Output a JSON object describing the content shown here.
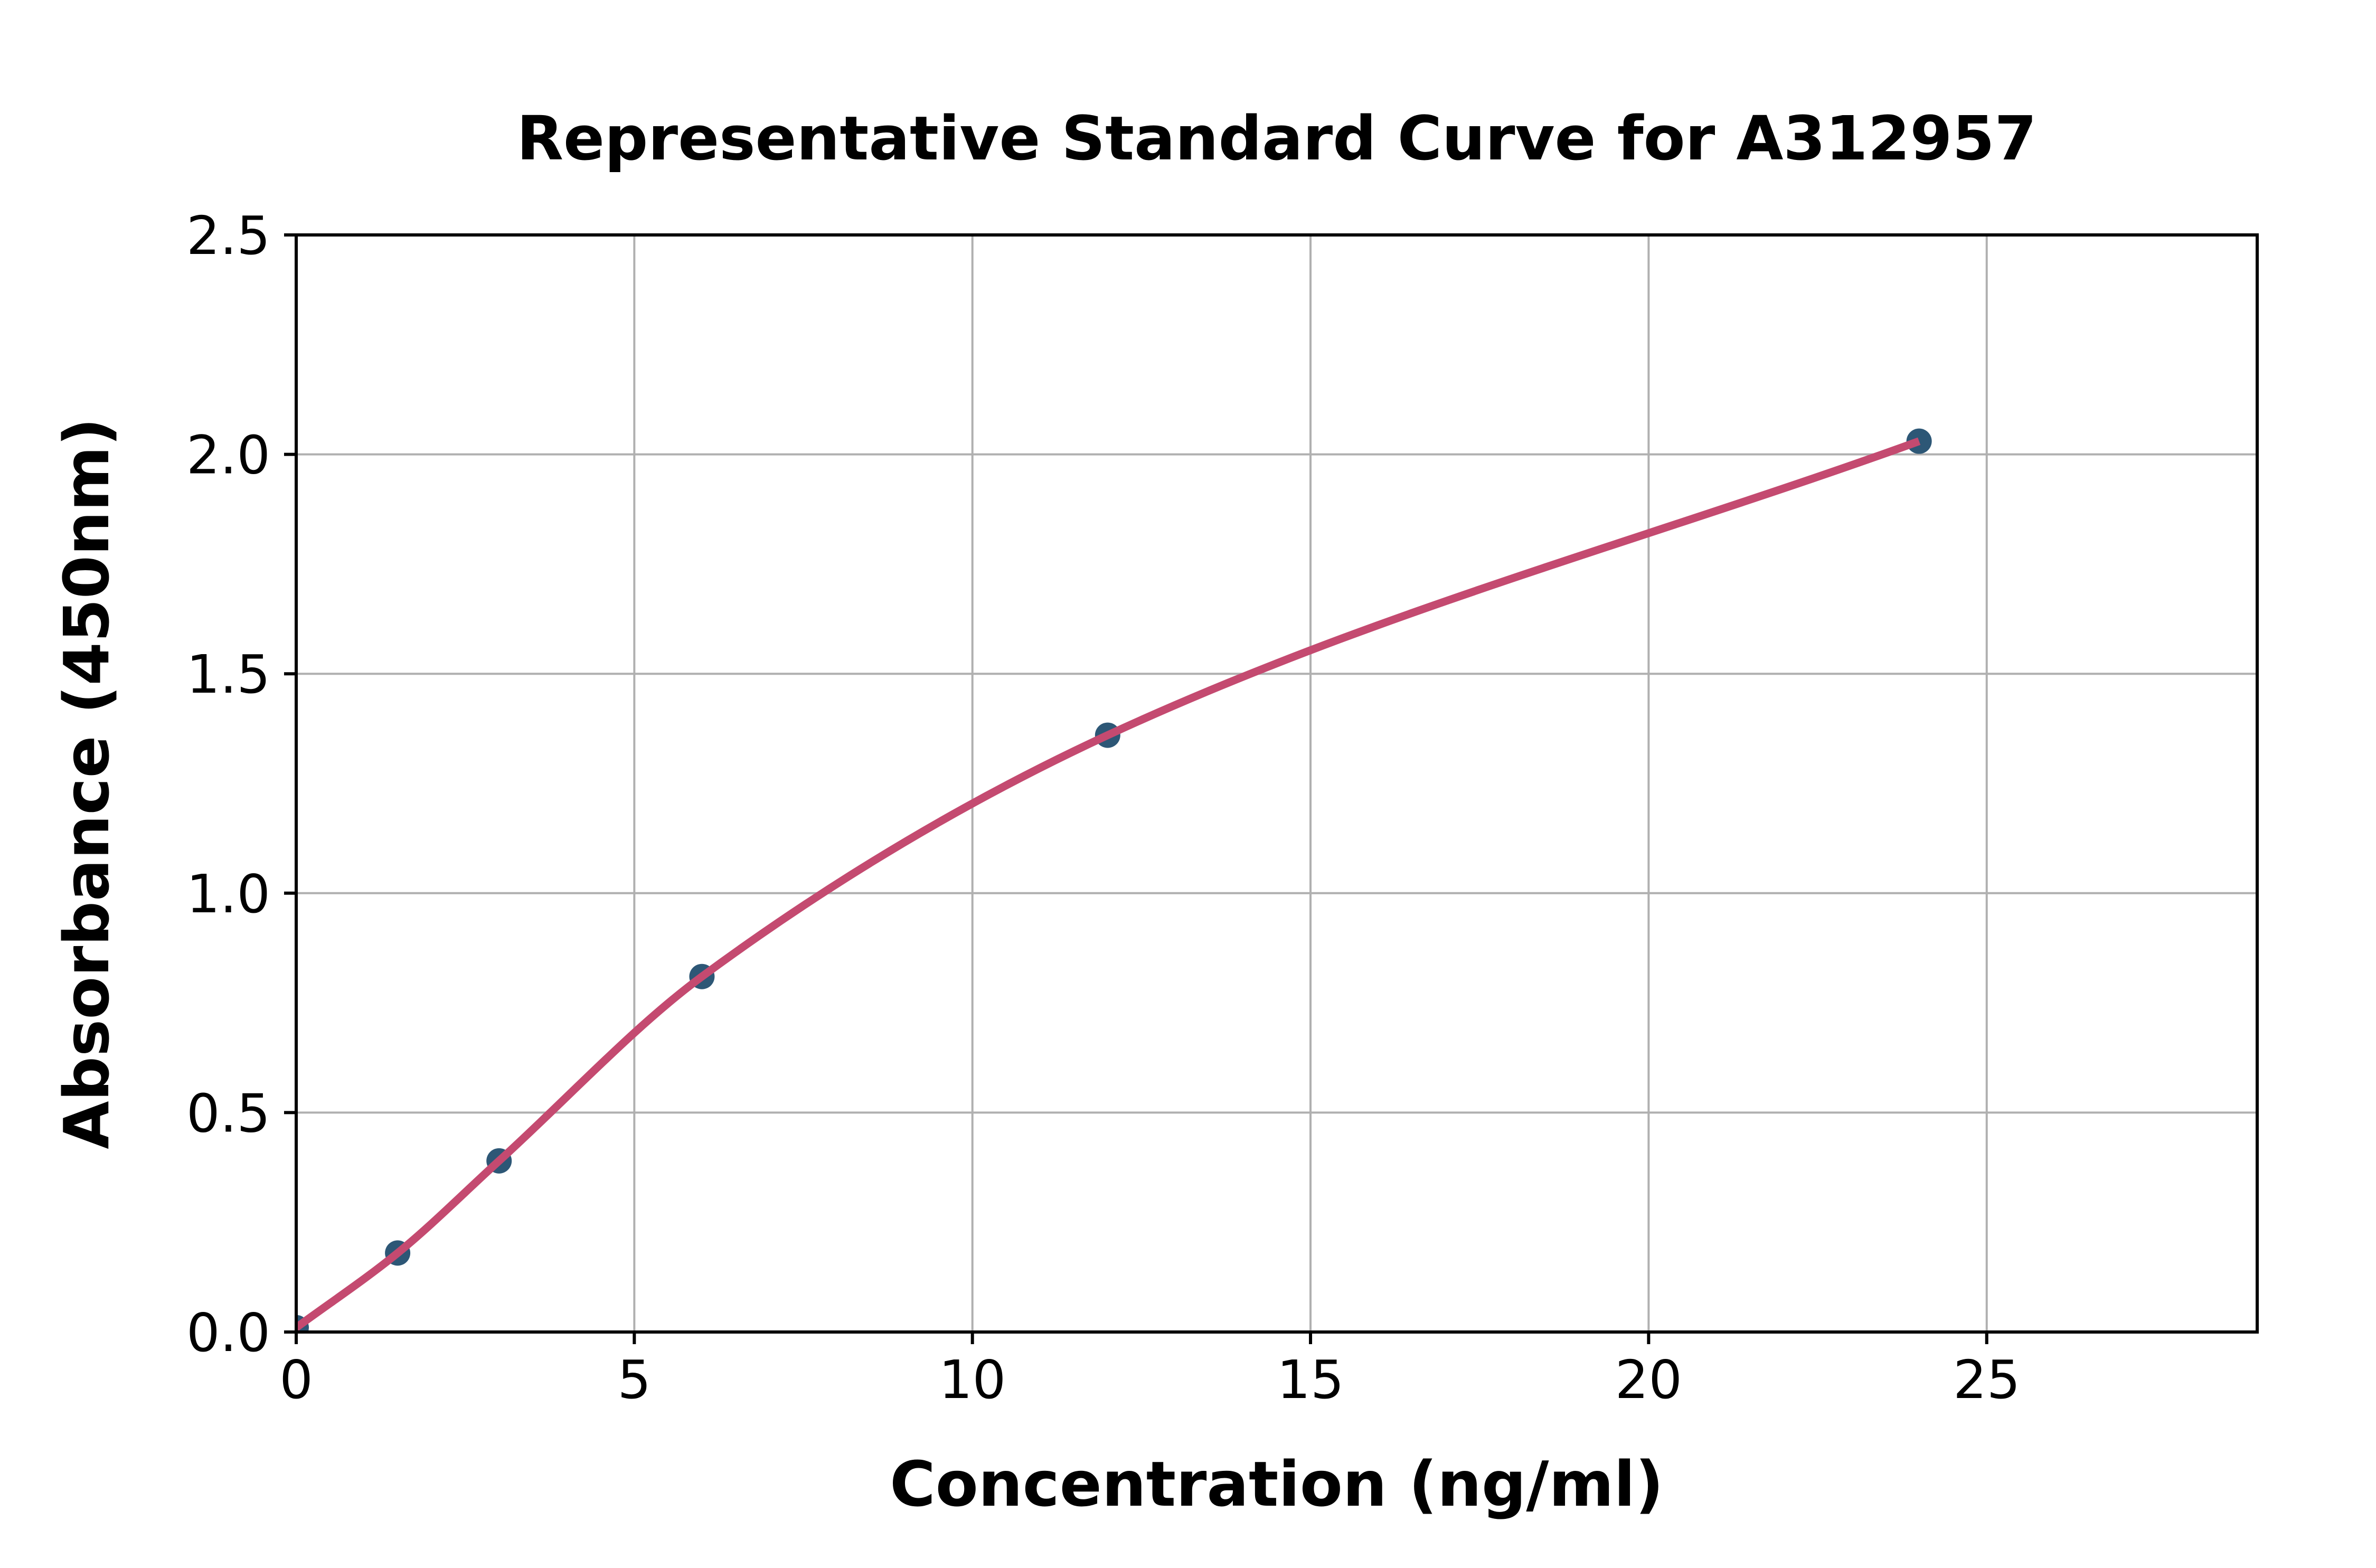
{
  "chart_data": {
    "type": "scatter",
    "title": "Representative Standard Curve for A312957",
    "xlabel": "Concentration (ng/ml)",
    "ylabel": "Absorbance (450nm)",
    "points": [
      {
        "x": 0,
        "y": 0.01
      },
      {
        "x": 1.5,
        "y": 0.18
      },
      {
        "x": 3,
        "y": 0.39
      },
      {
        "x": 6,
        "y": 0.81
      },
      {
        "x": 12,
        "y": 1.36
      },
      {
        "x": 24,
        "y": 2.03
      }
    ],
    "fit_curve_through_points": true,
    "xlim": [
      0,
      29
    ],
    "ylim": [
      0,
      2.5
    ],
    "x_ticks": [
      0,
      5,
      10,
      15,
      20,
      25
    ],
    "y_ticks": [
      0.0,
      0.5,
      1.0,
      1.5,
      2.0,
      2.5
    ],
    "x_tick_labels": [
      "0",
      "5",
      "10",
      "15",
      "20",
      "25"
    ],
    "y_tick_labels": [
      "0.0",
      "0.5",
      "1.0",
      "1.5",
      "2.0",
      "2.5"
    ],
    "grid": true,
    "legend": false,
    "colors": {
      "curve": "#c44a70",
      "marker": "#2d5776",
      "grid": "#b0b0b0",
      "axis": "#000000",
      "background": "#ffffff"
    }
  }
}
